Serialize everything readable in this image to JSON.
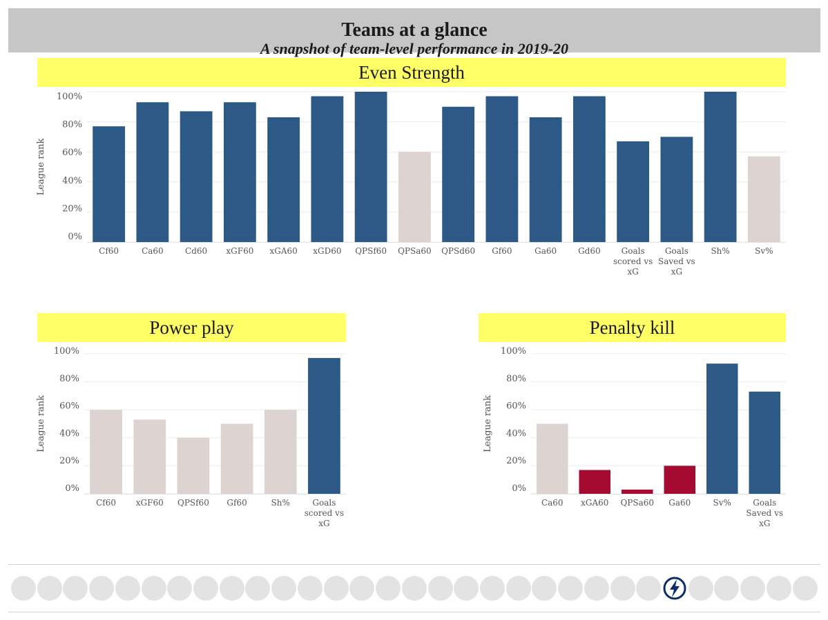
{
  "header": {
    "title": "Teams at a glance",
    "subtitle": "A snapshot of team-level performance in 2019-20"
  },
  "colors": {
    "good": "#2d5986",
    "neutral": "#ddd3d1",
    "bad": "#a50a30",
    "banner": "#ffff66",
    "header": "#c6c6c6"
  },
  "chart_data": [
    {
      "type": "bar",
      "title": "Even Strength",
      "ylabel": "League rank",
      "ylim": [
        0,
        100
      ],
      "yticks": [
        "0%",
        "20%",
        "40%",
        "60%",
        "80%",
        "100%"
      ],
      "grid": true,
      "categories": [
        "Cf60",
        "Ca60",
        "Cd60",
        "xGF60",
        "xGA60",
        "xGD60",
        "QPSf60",
        "QPSa60",
        "QPSd60",
        "Gf60",
        "Ga60",
        "Gd60",
        "Goals scored vs xG",
        "Goals Saved vs xG",
        "Sh%",
        "Sv%"
      ],
      "values": [
        77,
        93,
        87,
        93,
        83,
        97,
        100,
        60,
        90,
        97,
        83,
        97,
        67,
        70,
        100,
        57
      ],
      "colors": [
        "good",
        "good",
        "good",
        "good",
        "good",
        "good",
        "good",
        "neutral",
        "good",
        "good",
        "good",
        "good",
        "good",
        "good",
        "good",
        "neutral"
      ]
    },
    {
      "type": "bar",
      "title": "Power play",
      "ylabel": "League rank",
      "ylim": [
        0,
        100
      ],
      "yticks": [
        "0%",
        "20%",
        "40%",
        "60%",
        "80%",
        "100%"
      ],
      "grid": true,
      "categories": [
        "Cf60",
        "xGF60",
        "QPSf60",
        "Gf60",
        "Sh%",
        "Goals scored vs xG"
      ],
      "values": [
        60,
        53,
        40,
        50,
        60,
        97
      ],
      "colors": [
        "neutral",
        "neutral",
        "neutral",
        "neutral",
        "neutral",
        "good"
      ]
    },
    {
      "type": "bar",
      "title": "Penalty kill",
      "ylabel": "League rank",
      "ylim": [
        0,
        100
      ],
      "yticks": [
        "0%",
        "20%",
        "40%",
        "60%",
        "80%",
        "100%"
      ],
      "grid": true,
      "categories": [
        "Ca60",
        "xGA60",
        "QPSa60",
        "Ga60",
        "Sv%",
        "Goals Saved vs xG"
      ],
      "values": [
        50,
        17,
        3,
        20,
        93,
        73
      ],
      "colors": [
        "neutral",
        "bad",
        "bad",
        "bad",
        "good",
        "good"
      ]
    }
  ],
  "team_logos": [
    {
      "icon": "ducks-logo-icon"
    },
    {
      "icon": "coyotes-logo-icon"
    },
    {
      "icon": "bruins-logo-icon"
    },
    {
      "icon": "sabres-logo-icon"
    },
    {
      "icon": "hurricanes-logo-icon"
    },
    {
      "icon": "blue-jackets-logo-icon"
    },
    {
      "icon": "flames-logo-icon"
    },
    {
      "icon": "blackhawks-logo-icon"
    },
    {
      "icon": "avalanche-logo-icon"
    },
    {
      "icon": "stars-logo-icon"
    },
    {
      "icon": "red-wings-logo-icon"
    },
    {
      "icon": "oilers-logo-icon"
    },
    {
      "icon": "panthers-logo-icon"
    },
    {
      "icon": "kings-logo-icon"
    },
    {
      "icon": "wild-logo-icon"
    },
    {
      "icon": "canadiens-logo-icon"
    },
    {
      "icon": "devils-logo-icon"
    },
    {
      "icon": "predators-logo-icon"
    },
    {
      "icon": "islanders-logo-icon"
    },
    {
      "icon": "rangers-logo-icon"
    },
    {
      "icon": "senators-logo-icon"
    },
    {
      "icon": "flyers-logo-icon"
    },
    {
      "icon": "penguins-logo-icon"
    },
    {
      "icon": "sharks-logo-icon"
    },
    {
      "icon": "blues-logo-icon"
    },
    {
      "icon": "lightning-logo-icon",
      "selected": true
    },
    {
      "icon": "maple-leafs-logo-icon"
    },
    {
      "icon": "canucks-logo-icon"
    },
    {
      "icon": "golden-knights-logo-icon"
    },
    {
      "icon": "jets-logo-icon"
    },
    {
      "icon": "capitals-logo-icon"
    }
  ]
}
